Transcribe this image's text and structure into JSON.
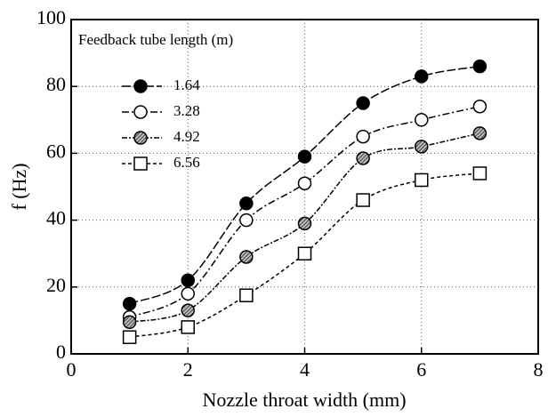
{
  "chart_data": {
    "type": "scatter",
    "xlabel": "Nozzle throat width (mm)",
    "ylabel": "f (Hz)",
    "legend_title": "Feedback tube length (m)",
    "xlim": [
      0,
      8
    ],
    "xticks": [
      0,
      2,
      4,
      6,
      8
    ],
    "ylim": [
      0,
      100
    ],
    "yticks": [
      0,
      20,
      40,
      60,
      80,
      100
    ],
    "grid": true,
    "legend": "upper left",
    "x": [
      1,
      2,
      3,
      4,
      5,
      6,
      7
    ],
    "series": [
      {
        "name": "1.64",
        "color": "#000000",
        "marker": "filled-circle",
        "values": [
          15,
          22,
          45,
          59,
          75,
          83,
          86
        ]
      },
      {
        "name": "3.28",
        "color": "#000000",
        "marker": "open-circle",
        "values": [
          11,
          18,
          40,
          51,
          65,
          70,
          74
        ]
      },
      {
        "name": "4.92",
        "color": "#000000",
        "marker": "hatched-circle",
        "values": [
          9.5,
          13,
          29,
          39,
          58.5,
          62,
          66
        ]
      },
      {
        "name": "6.56",
        "color": "#000000",
        "marker": "open-square",
        "values": [
          5,
          8,
          17.5,
          30,
          46,
          52,
          54
        ]
      }
    ]
  }
}
